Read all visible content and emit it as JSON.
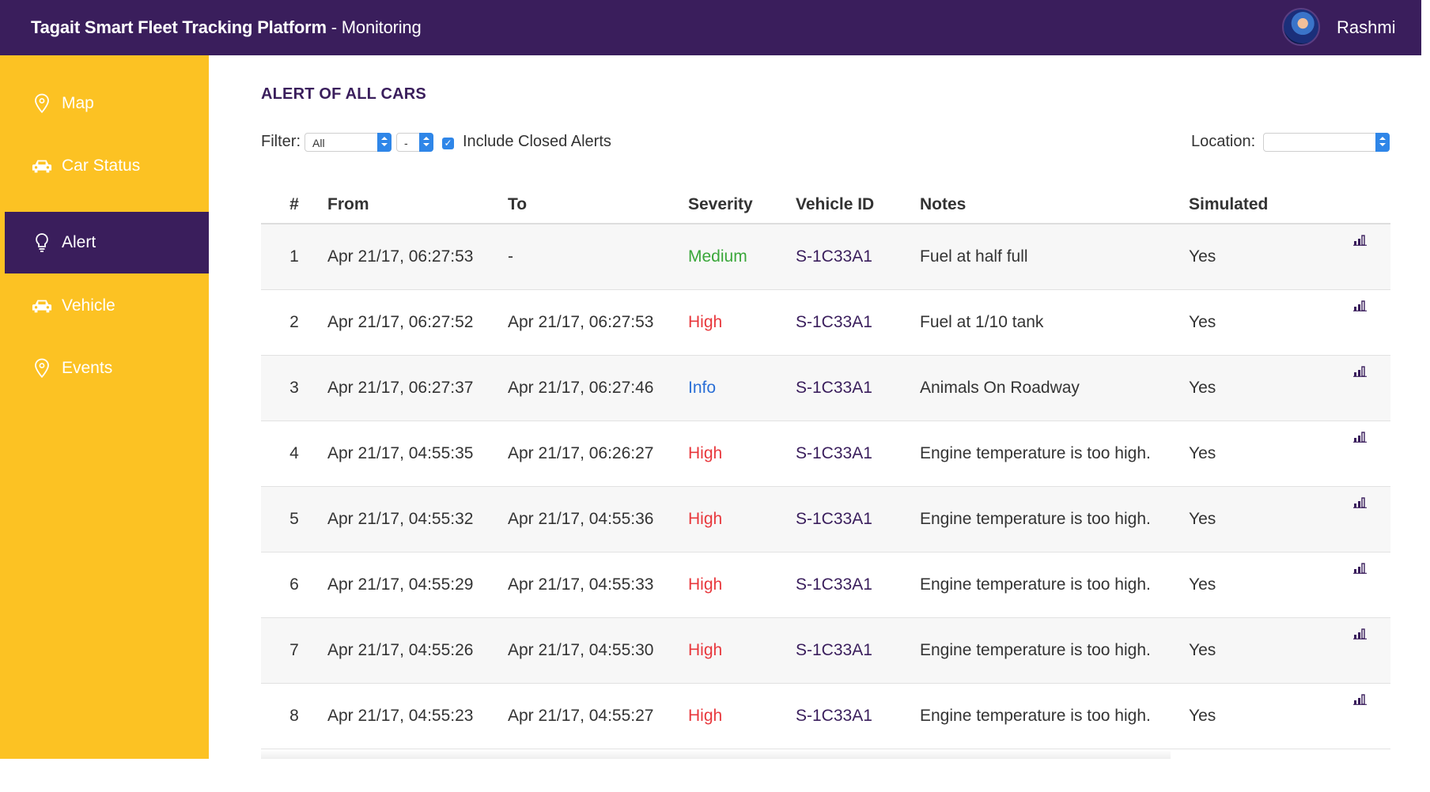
{
  "header": {
    "title_bold": "Tagait Smart Fleet Tracking Platform",
    "title_suffix": " - Monitoring",
    "username": "Rashmi"
  },
  "sidebar": {
    "items": [
      {
        "label": "Map",
        "icon": "map-pin-icon",
        "active": false
      },
      {
        "label": "Car Status",
        "icon": "car-icon",
        "active": false
      },
      {
        "label": "Alert",
        "icon": "lightbulb-icon",
        "active": true
      },
      {
        "label": "Vehicle",
        "icon": "car-icon",
        "active": false
      },
      {
        "label": "Events",
        "icon": "map-pin-icon",
        "active": false
      }
    ]
  },
  "page": {
    "title": "ALERT OF ALL CARS"
  },
  "filters": {
    "filter_label": "Filter:",
    "filter_value": "All",
    "second_value": "-",
    "include_closed_label": "Include Closed Alerts",
    "include_closed_checked": true,
    "location_label": "Location:",
    "location_value": ""
  },
  "table": {
    "columns": [
      "#",
      "From",
      "To",
      "Severity",
      "Vehicle ID",
      "Notes",
      "Simulated"
    ],
    "rows": [
      {
        "num": "1",
        "from": "Apr 21/17, 06:27:53",
        "to": "-",
        "severity": "Medium",
        "vehicle": "S-1C33A1",
        "notes": "Fuel at half full",
        "simulated": "Yes"
      },
      {
        "num": "2",
        "from": "Apr 21/17, 06:27:52",
        "to": "Apr 21/17, 06:27:53",
        "severity": "High",
        "vehicle": "S-1C33A1",
        "notes": "Fuel at 1/10 tank",
        "simulated": "Yes"
      },
      {
        "num": "3",
        "from": "Apr 21/17, 06:27:37",
        "to": "Apr 21/17, 06:27:46",
        "severity": "Info",
        "vehicle": "S-1C33A1",
        "notes": "Animals On Roadway",
        "simulated": "Yes"
      },
      {
        "num": "4",
        "from": "Apr 21/17, 04:55:35",
        "to": "Apr 21/17, 06:26:27",
        "severity": "High",
        "vehicle": "S-1C33A1",
        "notes": "Engine temperature is too high.",
        "simulated": "Yes"
      },
      {
        "num": "5",
        "from": "Apr 21/17, 04:55:32",
        "to": "Apr 21/17, 04:55:36",
        "severity": "High",
        "vehicle": "S-1C33A1",
        "notes": "Engine temperature is too high.",
        "simulated": "Yes"
      },
      {
        "num": "6",
        "from": "Apr 21/17, 04:55:29",
        "to": "Apr 21/17, 04:55:33",
        "severity": "High",
        "vehicle": "S-1C33A1",
        "notes": "Engine temperature is too high.",
        "simulated": "Yes"
      },
      {
        "num": "7",
        "from": "Apr 21/17, 04:55:26",
        "to": "Apr 21/17, 04:55:30",
        "severity": "High",
        "vehicle": "S-1C33A1",
        "notes": "Engine temperature is too high.",
        "simulated": "Yes"
      },
      {
        "num": "8",
        "from": "Apr 21/17, 04:55:23",
        "to": "Apr 21/17, 04:55:27",
        "severity": "High",
        "vehicle": "S-1C33A1",
        "notes": "Engine temperature is too high.",
        "simulated": "Yes"
      }
    ]
  },
  "colors": {
    "header_bg": "#3a1e5c",
    "sidebar_bg": "#fcc223",
    "medium": "#3aa73a",
    "high": "#e8383d",
    "info": "#2b6fd6"
  }
}
